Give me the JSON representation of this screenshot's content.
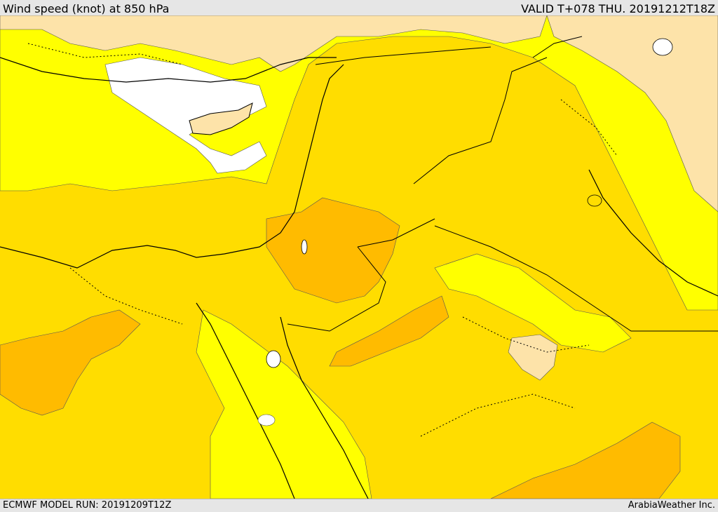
{
  "header": {
    "title": "Wind speed (knot) at 850 hPa",
    "valid": "VALID T+078 THU. 20191212T18Z"
  },
  "footer": {
    "model_run": "ECMWF MODEL RUN: 20191209T12Z",
    "credit": "ArabiaWeather Inc."
  },
  "map": {
    "region": "Eastern Mediterranean and Middle East",
    "field": "wind speed",
    "colors": {
      "calm": "#ffffff",
      "band_1": "#fde3a9",
      "band_2": "#ffff00",
      "band_3": "#ffdd00",
      "band_4": "#ffbb00",
      "coastline": "#000000",
      "contour": "#333333"
    }
  }
}
